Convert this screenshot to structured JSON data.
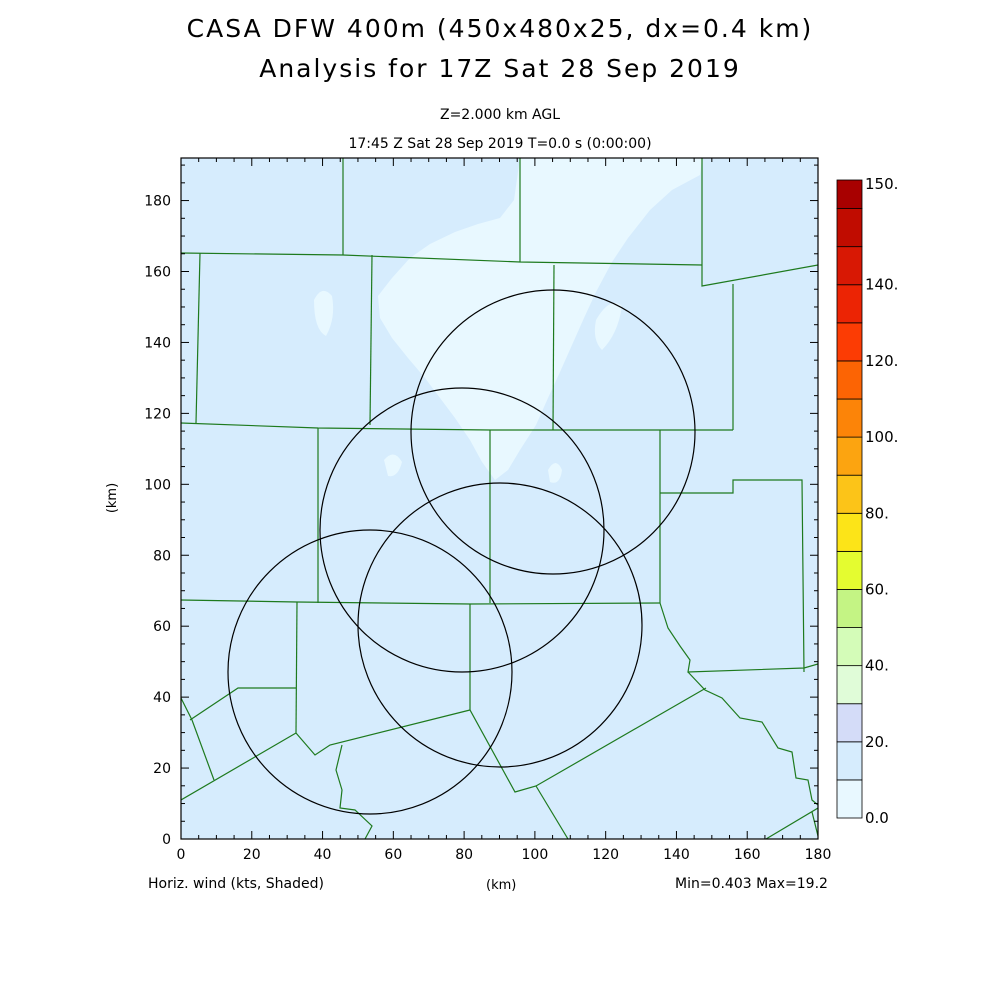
{
  "header": {
    "title_line1": "CASA DFW 400m (450x480x25, dx=0.4 km)",
    "title_line2": "Analysis for 17Z Sat 28 Sep 2019",
    "level": "Z=2.000 km AGL",
    "time": "17:45 Z Sat 28 Sep 2019    T=0.0 s (0:00:00)"
  },
  "axes": {
    "x_label": "(km)",
    "y_label": "(km)",
    "x_ticks": [
      0,
      20,
      40,
      60,
      80,
      100,
      120,
      140,
      160,
      180
    ],
    "y_ticks": [
      0,
      20,
      40,
      60,
      80,
      100,
      120,
      140,
      160,
      180
    ],
    "x_range": [
      0,
      180
    ],
    "y_range": [
      0,
      192
    ]
  },
  "footer": {
    "variable": "Horiz. wind (kts, Shaded)",
    "x_unit": "(km)",
    "minmax": "Min=0.403 Max=19.2"
  },
  "colorbar": {
    "labels": [
      "0.0",
      "20.",
      "40.",
      "60.",
      "80.",
      "100.",
      "120.",
      "140.",
      "150."
    ],
    "colors": [
      "#e8f8ff",
      "#d6ecfd",
      "#d4dcf8",
      "#e0fcd8",
      "#d4fcb8",
      "#c4f484",
      "#e4fc30",
      "#fce418",
      "#fcc418",
      "#fca410",
      "#fc8408",
      "#fc6404",
      "#fc3c04",
      "#ec2404",
      "#d81804",
      "#c00c00",
      "#a80000"
    ]
  },
  "colors": {
    "map_fill": "#d6ecfd",
    "light_fill": "#e8f8ff",
    "county_lines": "#1e7a1e",
    "radar_rings": "#000000"
  }
}
